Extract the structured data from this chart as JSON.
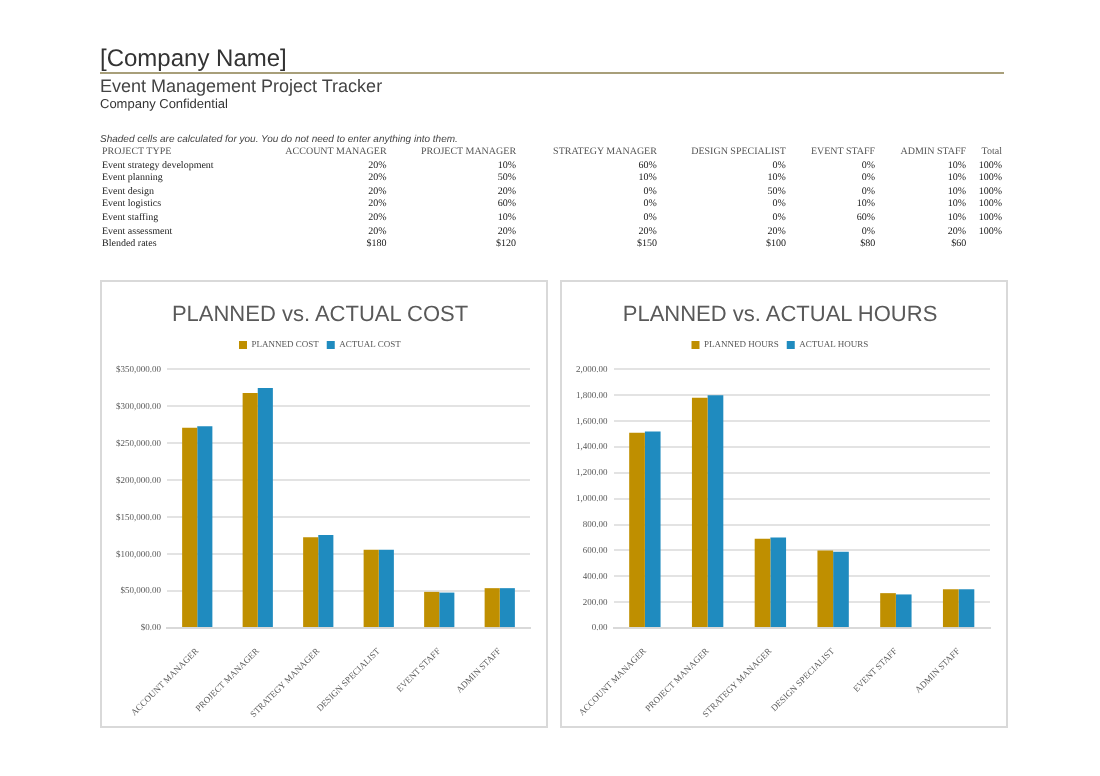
{
  "chart_data": [
    {
      "type": "heatmap",
      "title": "[Company Name]",
      "subtitle": "Event Management Project Tracker",
      "annotations": [
        "Company Confidential",
        "Shaded cells are calculated for you. You do not need to enter anything into them."
      ],
      "ylabel": "PROJECT TYPE",
      "categories": [
        "ACCOUNT MANAGER",
        "PROJECT MANAGER",
        "STRATEGY MANAGER",
        "DESIGN SPECIALIST",
        "EVENT STAFF",
        "ADMIN STAFF",
        "Total"
      ],
      "y_categories": [
        "Event strategy development",
        "Event planning",
        "Event design",
        "Event logistics",
        "Event staffing",
        "Event assessment",
        "Blended rates"
      ],
      "cells": [
        [
          20,
          10,
          60,
          0,
          0,
          10,
          100
        ],
        [
          20,
          50,
          10,
          10,
          0,
          10,
          100
        ],
        [
          20,
          20,
          0,
          50,
          0,
          10,
          100
        ],
        [
          20,
          60,
          0,
          0,
          10,
          10,
          100
        ],
        [
          20,
          10,
          0,
          0,
          60,
          10,
          100
        ],
        [
          20,
          20,
          20,
          20,
          0,
          20,
          100
        ],
        [
          180,
          120,
          150,
          100,
          80,
          60,
          null
        ]
      ],
      "cell_labels": [
        [
          "20%",
          "10%",
          "60%",
          "0%",
          "0%",
          "10%",
          "100%"
        ],
        [
          "20%",
          "50%",
          "10%",
          "10%",
          "0%",
          "10%",
          "100%"
        ],
        [
          "20%",
          "20%",
          "0%",
          "50%",
          "0%",
          "10%",
          "100%"
        ],
        [
          "20%",
          "60%",
          "0%",
          "0%",
          "10%",
          "10%",
          "100%"
        ],
        [
          "20%",
          "10%",
          "0%",
          "0%",
          "60%",
          "10%",
          "100%"
        ],
        [
          "20%",
          "20%",
          "20%",
          "20%",
          "0%",
          "20%",
          "100%"
        ],
        [
          "$180",
          "$120",
          "$150",
          "$100",
          "$80",
          "$60",
          null
        ]
      ]
    },
    {
      "type": "bar",
      "title": "PLANNED vs. ACTUAL COST",
      "legend": "top",
      "grid": "y",
      "categories": [
        "ACCOUNT MANAGER",
        "PROJECT MANAGER",
        "STRATEGY MANAGER",
        "DESIGN SPECIALIST",
        "EVENT STAFF",
        "ADMIN STAFF"
      ],
      "ylim": [
        0,
        350000
      ],
      "yticks": [
        {
          "value": 0,
          "label": "$0.00"
        },
        {
          "value": 50000,
          "label": "$50,000.00"
        },
        {
          "value": 100000,
          "label": "$100,000.00"
        },
        {
          "value": 150000,
          "label": "$150,000.00"
        },
        {
          "value": 200000,
          "label": "$200,000.00"
        },
        {
          "value": 250000,
          "label": "$250,000.00"
        },
        {
          "value": 300000,
          "label": "$300,000.00"
        },
        {
          "value": 350000,
          "label": "$350,000.00"
        }
      ],
      "series": [
        {
          "name": "PLANNED COST",
          "color": "#bf8f00",
          "values": [
            271000,
            318000,
            123000,
            106000,
            49000,
            54000
          ]
        },
        {
          "name": "ACTUAL COST",
          "color": "#1f8bbf",
          "values": [
            273000,
            325000,
            126000,
            106000,
            48000,
            54000
          ]
        }
      ]
    },
    {
      "type": "bar",
      "title": "PLANNED vs. ACTUAL HOURS",
      "legend": "top",
      "grid": "y",
      "categories": [
        "ACCOUNT MANAGER",
        "PROJECT MANAGER",
        "STRATEGY MANAGER",
        "DESIGN SPECIALIST",
        "EVENT STAFF",
        "ADMIN STAFF"
      ],
      "ylim": [
        0,
        2000
      ],
      "yticks": [
        {
          "value": 0,
          "label": "0.00"
        },
        {
          "value": 200,
          "label": "200.00"
        },
        {
          "value": 400,
          "label": "400.00"
        },
        {
          "value": 600,
          "label": "600.00"
        },
        {
          "value": 800,
          "label": "800.00"
        },
        {
          "value": 1000,
          "label": "1,000.00"
        },
        {
          "value": 1200,
          "label": "1,200.00"
        },
        {
          "value": 1400,
          "label": "1,400.00"
        },
        {
          "value": 1600,
          "label": "1,600.00"
        },
        {
          "value": 1800,
          "label": "1,800.00"
        },
        {
          "value": 2000,
          "label": "2,000.00"
        }
      ],
      "series": [
        {
          "name": "PLANNED HOURS",
          "color": "#bf8f00",
          "values": [
            1510,
            1780,
            690,
            600,
            270,
            300
          ]
        },
        {
          "name": "ACTUAL HOURS",
          "color": "#1f8bbf",
          "values": [
            1520,
            1800,
            700,
            590,
            260,
            300
          ]
        }
      ]
    }
  ]
}
